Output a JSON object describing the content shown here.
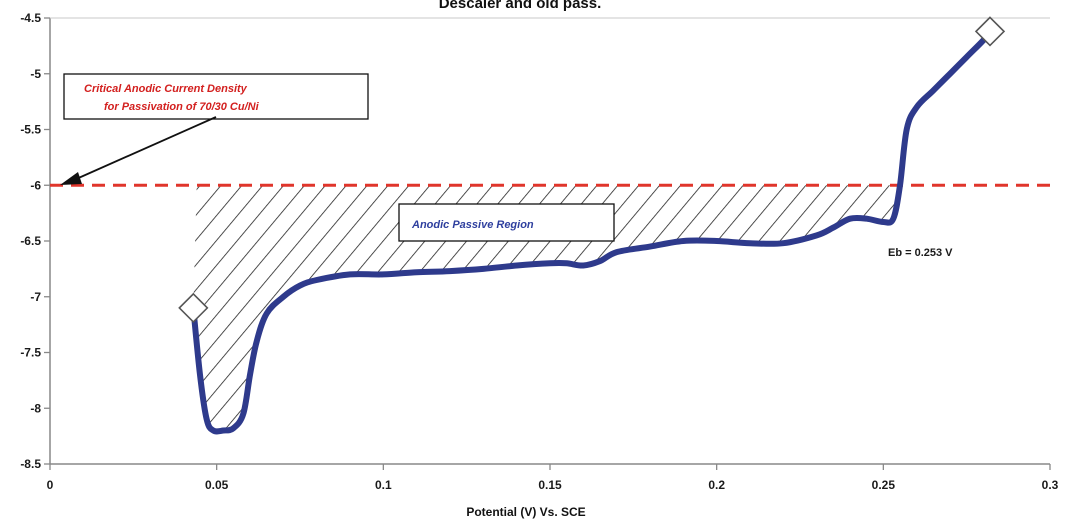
{
  "chart_data": {
    "type": "line",
    "title": "Descaler and old pass.",
    "xlabel": "Potential (V) Vs. SCE",
    "ylabel": "",
    "xlim": [
      0,
      0.3
    ],
    "ylim": [
      -8.5,
      -4.5
    ],
    "x_ticks": [
      "0",
      "0.05",
      "0.1",
      "0.15",
      "0.2",
      "0.25",
      "0.3"
    ],
    "y_ticks": [
      "-4.5",
      "-5",
      "-5.5",
      "-6",
      "-6.5",
      "-7",
      "-7.5",
      "-8",
      "-8.5"
    ],
    "grid": false,
    "legend": "none",
    "series": [
      {
        "color": "#2e3a8c",
        "x": [
          0.043,
          0.045,
          0.047,
          0.049,
          0.052,
          0.055,
          0.058,
          0.06,
          0.062,
          0.065,
          0.07,
          0.075,
          0.08,
          0.09,
          0.1,
          0.11,
          0.12,
          0.13,
          0.14,
          0.15,
          0.155,
          0.16,
          0.165,
          0.17,
          0.18,
          0.19,
          0.2,
          0.21,
          0.22,
          0.23,
          0.235,
          0.24,
          0.245,
          0.25,
          0.253,
          0.255,
          0.257,
          0.26,
          0.265,
          0.27,
          0.275,
          0.28,
          0.282
        ],
        "values": [
          -7.1,
          -7.7,
          -8.1,
          -8.2,
          -8.2,
          -8.18,
          -8.05,
          -7.7,
          -7.4,
          -7.15,
          -7.0,
          -6.9,
          -6.85,
          -6.8,
          -6.8,
          -6.78,
          -6.77,
          -6.75,
          -6.72,
          -6.7,
          -6.7,
          -6.72,
          -6.68,
          -6.6,
          -6.55,
          -6.5,
          -6.5,
          -6.52,
          -6.52,
          -6.45,
          -6.38,
          -6.3,
          -6.3,
          -6.33,
          -6.3,
          -6.0,
          -5.5,
          -5.3,
          -5.15,
          -5.0,
          -4.85,
          -4.7,
          -4.62
        ]
      }
    ],
    "markers": [
      {
        "x": 0.043,
        "y": -7.1
      },
      {
        "x": 0.282,
        "y": -4.62
      }
    ],
    "reference_line": {
      "y": -6,
      "color": "#e0352b",
      "style": "dashed"
    },
    "shaded_region": {
      "label": "Anodic Passive Region",
      "x_start": 0.044,
      "x_end": 0.255,
      "y_top": -6
    },
    "annotations": {
      "critical_line1": "Critical Anodic Current Density",
      "critical_line2": "for Passivation of 70/30 Cu/Ni",
      "passive_label": "Anodic Passive Region",
      "eb_label": "Eb = 0.253 V"
    },
    "colors": {
      "curve": "#2e3a8c",
      "dashed": "#e0352b",
      "axis": "#888888",
      "hatch": "#222222"
    }
  }
}
